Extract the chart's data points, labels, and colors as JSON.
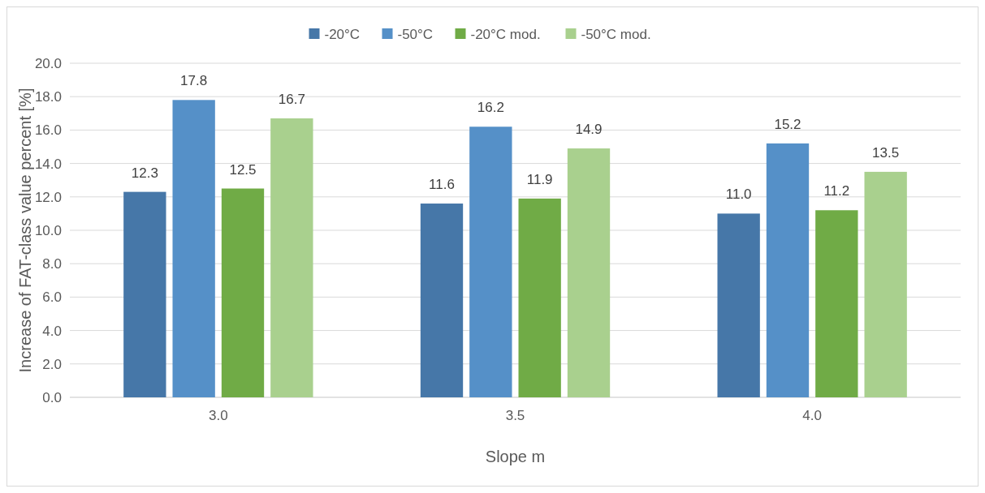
{
  "chart_data": {
    "type": "bar",
    "xlabel": "Slope m",
    "ylabel": "Increase of FAT-class value percent [%]",
    "categories": [
      "3.0",
      "3.5",
      "4.0"
    ],
    "series": [
      {
        "name": "-20°C",
        "color": "#4677a8",
        "values": [
          12.3,
          11.6,
          11.0
        ],
        "value_labels": [
          "12.3",
          "11.6",
          "11.0"
        ]
      },
      {
        "name": "-50°C",
        "color": "#5590c8",
        "values": [
          17.8,
          16.2,
          15.2
        ],
        "value_labels": [
          "17.8",
          "16.2",
          "15.2"
        ]
      },
      {
        "name": "-20°C mod.",
        "color": "#70ab46",
        "values": [
          12.5,
          11.9,
          11.2
        ],
        "value_labels": [
          "12.5",
          "11.9",
          "11.2"
        ]
      },
      {
        "name": "-50°C mod.",
        "color": "#a9d08e",
        "values": [
          16.7,
          14.9,
          13.5
        ],
        "value_labels": [
          "16.7",
          "14.9",
          "13.5"
        ]
      }
    ],
    "ylim": [
      0,
      20
    ],
    "yticks": [
      {
        "value": 0,
        "label": "0.0"
      },
      {
        "value": 2,
        "label": "2.0"
      },
      {
        "value": 4,
        "label": "4.0"
      },
      {
        "value": 6,
        "label": "6.0"
      },
      {
        "value": 8,
        "label": "8.0"
      },
      {
        "value": 10,
        "label": "10.0"
      },
      {
        "value": 12,
        "label": "12.0"
      },
      {
        "value": 14,
        "label": "14.0"
      },
      {
        "value": 16,
        "label": "16.0"
      },
      {
        "value": 18,
        "label": "18.0"
      },
      {
        "value": 20,
        "label": "20.0"
      }
    ],
    "grid": "y",
    "legend": "top"
  }
}
